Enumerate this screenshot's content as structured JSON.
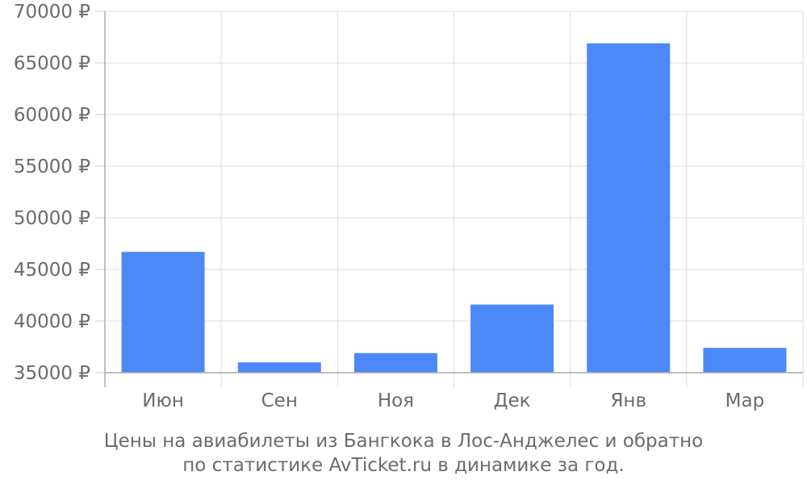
{
  "chart_data": {
    "type": "bar",
    "title": "",
    "xlabel": "",
    "ylabel": "",
    "categories": [
      "Июн",
      "Сен",
      "Ноя",
      "Дек",
      "Янв",
      "Мар"
    ],
    "values": [
      46700,
      36000,
      36900,
      41600,
      66900,
      37400
    ],
    "ylim": [
      35000,
      70000
    ],
    "yticks": [
      35000,
      40000,
      45000,
      50000,
      55000,
      60000,
      65000,
      70000
    ],
    "ytick_labels": [
      "35000 ₽",
      "40000 ₽",
      "45000 ₽",
      "50000 ₽",
      "55000 ₽",
      "60000 ₽",
      "65000 ₽",
      "70000 ₽"
    ],
    "grid": true,
    "bar_color": "#4d88f9"
  },
  "caption": {
    "line1": "Цены на авиабилеты из Бангкока в Лос-Анджелес и обратно",
    "line2": "по статистике AvTicket.ru в динамике за год."
  }
}
